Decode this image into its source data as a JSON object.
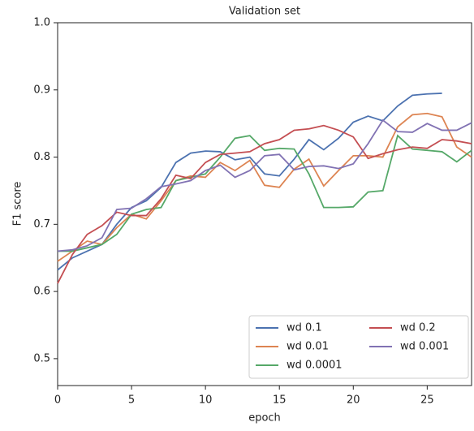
{
  "chart_data": {
    "type": "line",
    "title": "Validation set",
    "x_label": "epoch",
    "y_label": "F1 score",
    "xlim": [
      0,
      28
    ],
    "xticks": [
      0,
      5,
      10,
      15,
      20,
      25
    ],
    "ylim": [
      0.46,
      1.0
    ],
    "yticks": [
      0.5,
      0.6,
      0.7,
      0.8,
      0.9,
      {
        "value": 1,
        "label": "1.0"
      }
    ],
    "legend": "lower right",
    "grid": false,
    "x": [
      0,
      1,
      2,
      3,
      4,
      5,
      6,
      7,
      8,
      9,
      10,
      11,
      12,
      13,
      14,
      15,
      16,
      17,
      18,
      19,
      20,
      21,
      22,
      23,
      24,
      25,
      26,
      27,
      28
    ],
    "series": [
      {
        "name": "wd 0.1",
        "color": "#4c72b0",
        "values": [
          0.632,
          0.65,
          0.66,
          0.67,
          0.7,
          0.725,
          0.735,
          0.755,
          0.792,
          0.806,
          0.809,
          0.808,
          0.796,
          0.8,
          0.775,
          0.772,
          0.797,
          0.826,
          0.811,
          0.828,
          0.852,
          0.861,
          0.854,
          0.876,
          0.892,
          0.894,
          0.895,
          null,
          null
        ]
      },
      {
        "name": "wd 0.01",
        "color": "#dd8452",
        "values": [
          0.645,
          0.66,
          0.675,
          0.67,
          0.695,
          0.715,
          0.708,
          0.735,
          0.765,
          0.772,
          0.77,
          0.792,
          0.78,
          0.795,
          0.758,
          0.755,
          0.782,
          0.797,
          0.757,
          0.78,
          0.802,
          0.802,
          0.8,
          0.845,
          0.863,
          0.865,
          0.86,
          0.815,
          0.8
        ]
      },
      {
        "name": "wd 0.0001",
        "color": "#55a868",
        "values": [
          0.66,
          0.66,
          0.665,
          0.67,
          0.685,
          0.715,
          0.722,
          0.725,
          0.765,
          0.77,
          0.775,
          0.8,
          0.828,
          0.832,
          0.81,
          0.813,
          0.812,
          0.775,
          0.725,
          0.725,
          0.726,
          0.748,
          0.75,
          0.832,
          0.812,
          0.81,
          0.808,
          0.793,
          0.81
        ]
      },
      {
        "name": "wd 0.2",
        "color": "#c44e52",
        "values": [
          0.612,
          0.655,
          0.685,
          0.698,
          0.718,
          0.713,
          0.713,
          0.738,
          0.773,
          0.768,
          0.792,
          0.804,
          0.806,
          0.808,
          0.82,
          0.826,
          0.84,
          0.842,
          0.847,
          0.84,
          0.83,
          0.798,
          0.805,
          0.811,
          0.815,
          0.813,
          0.826,
          0.824,
          0.82
        ]
      },
      {
        "name": "wd 0.001",
        "color": "#8172b3",
        "values": [
          0.66,
          0.662,
          0.668,
          0.68,
          0.722,
          0.724,
          0.738,
          0.756,
          0.76,
          0.765,
          0.78,
          0.788,
          0.77,
          0.78,
          0.802,
          0.804,
          0.781,
          0.786,
          0.787,
          0.783,
          0.79,
          0.82,
          0.855,
          0.838,
          0.837,
          0.85,
          0.84,
          0.84,
          0.851
        ]
      }
    ]
  }
}
